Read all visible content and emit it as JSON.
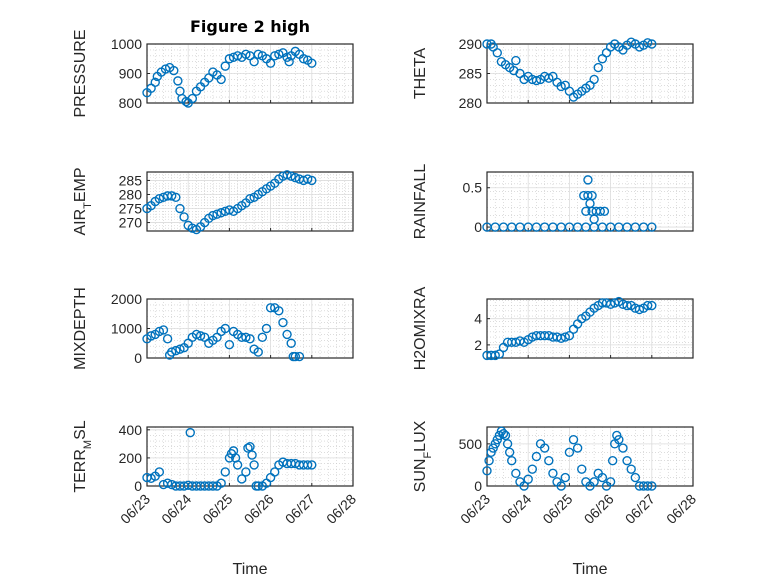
{
  "chart_data": [
    {
      "type": "scatter",
      "title": "Figure 2 high",
      "ylabel": "PRESSURE",
      "ylim": [
        800,
        1000
      ],
      "yticks": [
        800,
        900,
        1000
      ],
      "xlim": [
        "06/23",
        "06/28"
      ],
      "xticks": [
        "06/23",
        "06/24",
        "06/25",
        "06/26",
        "06/27",
        "06/28"
      ],
      "xlabel": "",
      "show_xticklabels": false,
      "grid": true,
      "series": [
        {
          "x": [
            0,
            0.1,
            0.2,
            0.25,
            0.35,
            0.45,
            0.55,
            0.65,
            0.75,
            0.8,
            0.85,
            0.95,
            1.0,
            1.1,
            1.2,
            1.3,
            1.4,
            1.5,
            1.6,
            1.7,
            1.8,
            1.9,
            2.0,
            2.1,
            2.2,
            2.3,
            2.4,
            2.5,
            2.6,
            2.7,
            2.8,
            2.9,
            3.0,
            3.1,
            3.2,
            3.3,
            3.4,
            3.45,
            3.5,
            3.6,
            3.7,
            3.8,
            3.9,
            4.0
          ],
          "y": [
            835,
            850,
            870,
            890,
            905,
            915,
            920,
            910,
            875,
            840,
            815,
            805,
            800,
            815,
            840,
            855,
            870,
            885,
            905,
            895,
            880,
            925,
            950,
            955,
            960,
            955,
            965,
            960,
            940,
            965,
            960,
            950,
            935,
            960,
            965,
            970,
            955,
            940,
            960,
            975,
            965,
            950,
            945,
            935
          ]
        }
      ]
    },
    {
      "type": "scatter",
      "title": "",
      "ylabel": "THETA",
      "ylim": [
        280,
        290
      ],
      "yticks": [
        280,
        285,
        290
      ],
      "xlim": [
        "06/23",
        "06/28"
      ],
      "xticks": [
        "06/23",
        "06/24",
        "06/25",
        "06/26",
        "06/27",
        "06/28"
      ],
      "xlabel": "",
      "show_xticklabels": false,
      "grid": true,
      "series": [
        {
          "x": [
            0,
            0.1,
            0.15,
            0.25,
            0.35,
            0.45,
            0.55,
            0.65,
            0.7,
            0.8,
            0.9,
            1.0,
            1.1,
            1.2,
            1.3,
            1.4,
            1.5,
            1.6,
            1.7,
            1.8,
            1.9,
            2.0,
            2.1,
            2.2,
            2.3,
            2.4,
            2.5,
            2.6,
            2.7,
            2.8,
            2.9,
            3.0,
            3.1,
            3.2,
            3.3,
            3.4,
            3.5,
            3.6,
            3.7,
            3.8,
            3.9,
            4.0
          ],
          "y": [
            290,
            290,
            289.5,
            288.5,
            287,
            286.5,
            286,
            285.5,
            287.2,
            285,
            284,
            284.5,
            284,
            283.8,
            284,
            284.5,
            284.2,
            284.5,
            283.5,
            282.8,
            283,
            282,
            281,
            281.5,
            282,
            282.5,
            283,
            284,
            286,
            287.5,
            288.5,
            289.5,
            290,
            289.5,
            289,
            289.8,
            290.3,
            290,
            289.5,
            289.8,
            290.2,
            290
          ]
        }
      ]
    },
    {
      "type": "scatter",
      "title": "",
      "ylabel": "AIR_TEMP",
      "ylim": [
        267,
        288
      ],
      "yticks": [
        270,
        275,
        280,
        285
      ],
      "xlim": [
        "06/23",
        "06/28"
      ],
      "xticks": [
        "06/23",
        "06/24",
        "06/25",
        "06/26",
        "06/27",
        "06/28"
      ],
      "xlabel": "",
      "show_xticklabels": false,
      "grid": true,
      "series": [
        {
          "x": [
            0,
            0.1,
            0.2,
            0.3,
            0.4,
            0.5,
            0.6,
            0.7,
            0.8,
            0.9,
            1.0,
            1.1,
            1.2,
            1.3,
            1.4,
            1.5,
            1.6,
            1.7,
            1.8,
            1.9,
            2.0,
            2.1,
            2.2,
            2.3,
            2.4,
            2.5,
            2.6,
            2.7,
            2.8,
            2.9,
            3.0,
            3.1,
            3.2,
            3.3,
            3.4,
            3.5,
            3.6,
            3.7,
            3.8,
            3.9,
            4.0
          ],
          "y": [
            275,
            276,
            277.5,
            278.5,
            279,
            279.5,
            279.5,
            279,
            275,
            272,
            269,
            268,
            267.5,
            268.5,
            270,
            271.5,
            272.5,
            273,
            273.5,
            274,
            274.5,
            274,
            275,
            276,
            277,
            278.5,
            279,
            280,
            281,
            282,
            283,
            284,
            285.5,
            286.5,
            287,
            286.5,
            286,
            285.5,
            285,
            285.5,
            285
          ]
        }
      ]
    },
    {
      "type": "scatter",
      "title": "",
      "ylabel": "RAINFALL",
      "ylim": [
        -0.05,
        0.7
      ],
      "yticks": [
        0,
        0.5
      ],
      "xlim": [
        "06/23",
        "06/28"
      ],
      "xticks": [
        "06/23",
        "06/24",
        "06/25",
        "06/26",
        "06/27",
        "06/28"
      ],
      "xlabel": "",
      "show_xticklabels": false,
      "grid": true,
      "series": [
        {
          "x": [
            0,
            0.2,
            0.4,
            0.6,
            0.8,
            1.0,
            1.2,
            1.4,
            1.6,
            1.8,
            2.0,
            2.2,
            2.4,
            2.6,
            2.8,
            3.0,
            3.2,
            3.4,
            3.6,
            3.8,
            4.0,
            2.35,
            2.45,
            2.55,
            2.45,
            2.5,
            2.55,
            2.6,
            2.65,
            2.75,
            2.85,
            2.4
          ],
          "y": [
            0,
            0,
            0,
            0,
            0,
            0,
            0,
            0,
            0,
            0,
            0,
            0,
            0,
            0,
            0,
            0,
            0,
            0,
            0,
            0,
            0,
            0.4,
            0.4,
            0.4,
            0.6,
            0.3,
            0.2,
            0.1,
            0.2,
            0.2,
            0.2,
            0.2
          ]
        }
      ]
    },
    {
      "type": "scatter",
      "title": "",
      "ylabel": "MIXDEPTH",
      "ylim": [
        0,
        2000
      ],
      "yticks": [
        0,
        1000,
        2000
      ],
      "xlim": [
        "06/23",
        "06/28"
      ],
      "xticks": [
        "06/23",
        "06/24",
        "06/25",
        "06/26",
        "06/27",
        "06/28"
      ],
      "xlabel": "",
      "show_xticklabels": false,
      "grid": true,
      "series": [
        {
          "x": [
            0,
            0.1,
            0.2,
            0.3,
            0.4,
            0.5,
            0.55,
            0.6,
            0.7,
            0.8,
            0.9,
            1.0,
            1.1,
            1.2,
            1.3,
            1.4,
            1.5,
            1.6,
            1.7,
            1.8,
            1.9,
            2.0,
            2.1,
            2.2,
            2.3,
            2.4,
            2.5,
            2.6,
            2.7,
            2.8,
            2.9,
            3.0,
            3.1,
            3.2,
            3.3,
            3.4,
            3.5,
            3.55,
            3.6,
            3.7
          ],
          "y": [
            650,
            750,
            800,
            900,
            950,
            650,
            100,
            200,
            250,
            300,
            350,
            500,
            700,
            800,
            750,
            700,
            500,
            600,
            700,
            900,
            1000,
            450,
            900,
            800,
            700,
            700,
            650,
            300,
            200,
            700,
            1000,
            1700,
            1700,
            1600,
            1200,
            800,
            500,
            50,
            50,
            50
          ]
        }
      ]
    },
    {
      "type": "scatter",
      "title": "",
      "ylabel": "H2OMIXRA",
      "ylim": [
        1,
        5.5
      ],
      "yticks": [
        2,
        4
      ],
      "xlim": [
        "06/23",
        "06/28"
      ],
      "xticks": [
        "06/23",
        "06/24",
        "06/25",
        "06/26",
        "06/27",
        "06/28"
      ],
      "xlabel": "",
      "show_xticklabels": false,
      "grid": true,
      "series": [
        {
          "x": [
            0,
            0.1,
            0.2,
            0.3,
            0.4,
            0.5,
            0.6,
            0.7,
            0.8,
            0.9,
            1.0,
            1.1,
            1.2,
            1.3,
            1.4,
            1.5,
            1.6,
            1.7,
            1.8,
            1.9,
            2.0,
            2.1,
            2.2,
            2.3,
            2.4,
            2.5,
            2.6,
            2.7,
            2.8,
            2.9,
            3.0,
            3.1,
            3.2,
            3.3,
            3.4,
            3.5,
            3.6,
            3.7,
            3.8,
            3.9,
            4.0
          ],
          "y": [
            1.2,
            1.2,
            1.2,
            1.3,
            1.8,
            2.2,
            2.2,
            2.2,
            2.3,
            2.2,
            2.4,
            2.6,
            2.7,
            2.7,
            2.7,
            2.7,
            2.6,
            2.6,
            2.5,
            2.6,
            2.7,
            3.2,
            3.6,
            4.0,
            4.2,
            4.5,
            4.8,
            5.0,
            5.2,
            5.2,
            5.1,
            5.2,
            5.3,
            5.1,
            5.0,
            5.0,
            4.8,
            4.7,
            4.8,
            5.0,
            5.0
          ]
        }
      ]
    },
    {
      "type": "scatter",
      "title": "",
      "ylabel": "TERR_MSL",
      "ylim": [
        0,
        420
      ],
      "yticks": [
        0,
        200,
        400
      ],
      "xlim": [
        "06/23",
        "06/28"
      ],
      "xticks": [
        "06/23",
        "06/24",
        "06/25",
        "06/26",
        "06/27",
        "06/28"
      ],
      "xlabel": "Time",
      "show_xticklabels": true,
      "grid": true,
      "series": [
        {
          "x": [
            0,
            0.1,
            0.2,
            0.3,
            0.4,
            0.5,
            0.6,
            0.7,
            0.8,
            0.9,
            1.0,
            1.05,
            1.1,
            1.2,
            1.3,
            1.4,
            1.5,
            1.6,
            1.7,
            1.8,
            1.9,
            2.0,
            2.05,
            2.1,
            2.15,
            2.2,
            2.3,
            2.4,
            2.45,
            2.5,
            2.55,
            2.6,
            2.65,
            2.7,
            2.8,
            2.9,
            3.0,
            3.1,
            3.2,
            3.3,
            3.4,
            3.5,
            3.6,
            3.7,
            3.8,
            3.9,
            4.0
          ],
          "y": [
            60,
            55,
            70,
            100,
            10,
            20,
            10,
            0,
            0,
            0,
            5,
            380,
            0,
            0,
            0,
            0,
            0,
            0,
            0,
            20,
            100,
            200,
            230,
            250,
            200,
            150,
            50,
            100,
            270,
            280,
            220,
            150,
            0,
            0,
            0,
            20,
            60,
            100,
            150,
            170,
            160,
            160,
            160,
            150,
            150,
            150,
            150
          ]
        }
      ]
    },
    {
      "type": "scatter",
      "title": "",
      "ylabel": "SUN_FLUX",
      "ylim": [
        0,
        700
      ],
      "yticks": [
        0,
        500
      ],
      "xlim": [
        "06/23",
        "06/28"
      ],
      "xticks": [
        "06/23",
        "06/24",
        "06/25",
        "06/26",
        "06/27",
        "06/28"
      ],
      "xlabel": "Time",
      "show_xticklabels": true,
      "grid": true,
      "series": [
        {
          "x": [
            0,
            0.05,
            0.1,
            0.15,
            0.2,
            0.25,
            0.3,
            0.35,
            0.4,
            0.45,
            0.5,
            0.55,
            0.6,
            0.7,
            0.8,
            0.9,
            1.0,
            1.1,
            1.2,
            1.3,
            1.4,
            1.5,
            1.6,
            1.7,
            1.8,
            1.9,
            2.0,
            2.1,
            2.2,
            2.3,
            2.4,
            2.5,
            2.6,
            2.7,
            2.8,
            2.9,
            3.0,
            3.05,
            3.1,
            3.15,
            3.2,
            3.3,
            3.4,
            3.5,
            3.6,
            3.7,
            3.8,
            3.9,
            4.0
          ],
          "y": [
            180,
            300,
            400,
            450,
            500,
            550,
            600,
            650,
            620,
            600,
            500,
            400,
            300,
            150,
            50,
            0,
            80,
            200,
            350,
            500,
            450,
            300,
            150,
            50,
            0,
            100,
            400,
            550,
            450,
            200,
            50,
            0,
            50,
            150,
            100,
            0,
            50,
            300,
            500,
            600,
            550,
            450,
            300,
            200,
            100,
            0,
            0,
            0,
            0
          ]
        }
      ]
    }
  ]
}
